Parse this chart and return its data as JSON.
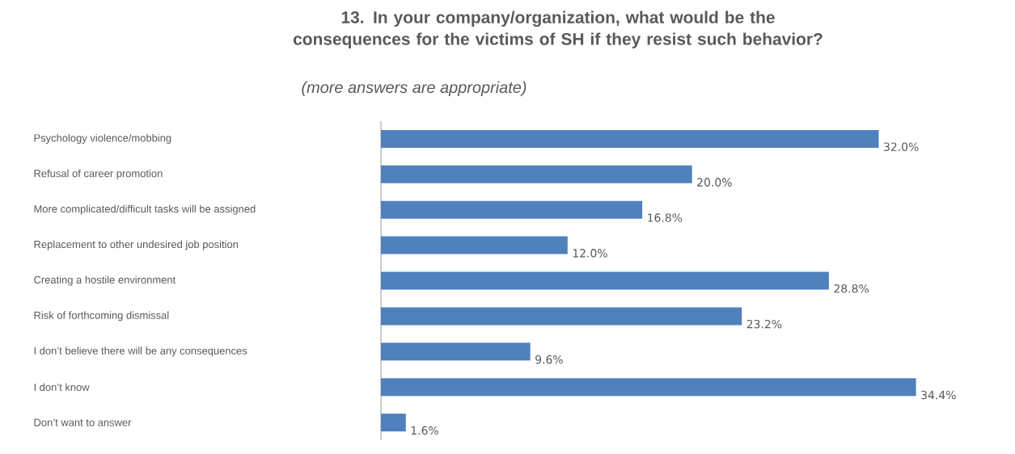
{
  "chart_data": {
    "type": "bar",
    "orientation": "horizontal",
    "title": "13. In your company/organization, what would be the consequences for the victims of SH if they resist such behavior?",
    "subtitle": "(more answers are appropriate)",
    "categories": [
      "Psychology violence/mobbing",
      "Refusal of career promotion",
      "More complicated/difficult tasks will be assigned",
      "Replacement to other undesired job position",
      "Creating a hostile environment",
      "Risk of forthcoming dismissal",
      "I don’t believe there will be any consequences",
      "I don’t know",
      "Don’t want to answer"
    ],
    "values": [
      32.0,
      20.0,
      16.8,
      12.0,
      28.8,
      23.2,
      9.6,
      34.4,
      1.6
    ],
    "value_labels": [
      "32.0%",
      "20.0%",
      "16.8%",
      "12.0%",
      "28.8%",
      "23.2%",
      "9.6%",
      "34.4%",
      "1.6%"
    ],
    "color": "#4f81bd"
  }
}
